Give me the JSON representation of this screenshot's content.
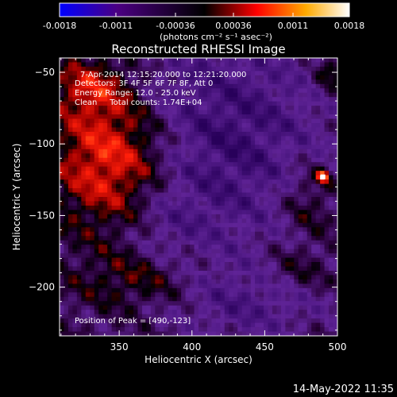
{
  "chart_data": {
    "type": "heatmap",
    "title": "Reconstructed RHESSI Image",
    "colorbar": {
      "ticks": [
        "-0.0018",
        "-0.0011",
        "-0.00036",
        "0.00036",
        "0.0011",
        "0.0018"
      ],
      "tick_values": [
        -0.0018,
        -0.0011,
        -0.00036,
        0.00036,
        0.0011,
        0.0018
      ],
      "range": [
        -0.0018,
        0.0018
      ],
      "unit_label": "(photons cm⁻² s⁻¹ asec⁻²)",
      "colors": [
        "#0000ff",
        "#4b0082",
        "#000000",
        "#ff0000",
        "#ffaa00",
        "#ffffff"
      ]
    },
    "xlabel": "Heliocentric X (arcsec)",
    "ylabel": "Heliocentric Y (arcsec)",
    "xlim": [
      309,
      500
    ],
    "ylim": [
      -234,
      -40
    ],
    "x_ticks": [
      350,
      400,
      450,
      500
    ],
    "x_tick_labels": [
      "350",
      "400",
      "450",
      "500"
    ],
    "y_ticks": [
      -50,
      -100,
      -150,
      -200
    ],
    "y_tick_labels": [
      "−50",
      "−100",
      "−150",
      "−200"
    ],
    "annotations": [
      "7-Apr-2014 12:15:20.000 to 12:21:20.000",
      "Detectors: 3F 4F 5F 6F 7F 8F, Att 0",
      "Energy Range: 12.0 - 25.0 keV",
      "Clean     Total counts: 1.74E+04"
    ],
    "peak_label": "Position of Peak = [490,-123]",
    "peak": {
      "x": 490,
      "y": -123
    }
  },
  "footer": {
    "timestamp": "14-May-2022 11:35"
  }
}
